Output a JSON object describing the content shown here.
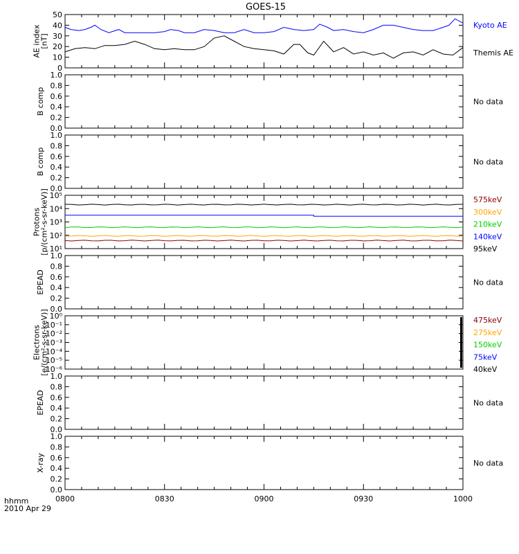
{
  "title": "GOES-15",
  "time_label": "hhmm",
  "date_label": "2010 Apr 29",
  "x_ticks": [
    "0800",
    "0830",
    "0900",
    "0930",
    "1000"
  ],
  "chart_data": [
    {
      "type": "line",
      "ylabel": [
        "AE index",
        "[nT]"
      ],
      "yticks": [
        "0",
        "10",
        "20",
        "30",
        "40",
        "50"
      ],
      "ylim": [
        0,
        50
      ],
      "xlim_hours": [
        8.0,
        10.0
      ],
      "series": [
        {
          "name": "Kyoto AE",
          "color": "#0000ff",
          "x": [
            8.0,
            8.03,
            8.07,
            8.1,
            8.13,
            8.15,
            8.18,
            8.22,
            8.27,
            8.3,
            8.35,
            8.4,
            8.45,
            8.5,
            8.53,
            8.57,
            8.6,
            8.65,
            8.7,
            8.75,
            8.8,
            8.85,
            8.9,
            8.95,
            9.0,
            9.05,
            9.1,
            9.15,
            9.2,
            9.25,
            9.28,
            9.32,
            9.35,
            9.4,
            9.45,
            9.5,
            9.55,
            9.6,
            9.65,
            9.7,
            9.75,
            9.8,
            9.85,
            9.9,
            9.93,
            9.96,
            10.0
          ],
          "values": [
            38,
            36,
            35,
            36,
            38,
            40,
            36,
            33,
            36,
            33,
            33,
            33,
            33,
            34,
            36,
            35,
            33,
            33,
            36,
            35,
            33,
            33,
            36,
            33,
            33,
            34,
            38,
            36,
            35,
            36,
            41,
            38,
            35,
            36,
            34,
            33,
            36,
            40,
            40,
            38,
            36,
            35,
            35,
            38,
            40,
            46,
            42
          ]
        },
        {
          "name": "Themis AE",
          "color": "#000000",
          "x": [
            8.0,
            8.05,
            8.1,
            8.15,
            8.2,
            8.25,
            8.3,
            8.35,
            8.4,
            8.45,
            8.5,
            8.55,
            8.6,
            8.65,
            8.7,
            8.75,
            8.8,
            8.85,
            8.9,
            8.95,
            9.0,
            9.05,
            9.1,
            9.15,
            9.18,
            9.22,
            9.25,
            9.3,
            9.35,
            9.4,
            9.45,
            9.5,
            9.55,
            9.6,
            9.65,
            9.7,
            9.75,
            9.8,
            9.85,
            9.9,
            9.95,
            10.0
          ],
          "values": [
            15,
            18,
            19,
            18,
            21,
            21,
            22,
            25,
            22,
            18,
            17,
            18,
            17,
            17,
            20,
            28,
            30,
            25,
            20,
            18,
            17,
            16,
            13,
            22,
            22,
            14,
            12,
            25,
            15,
            19,
            13,
            15,
            12,
            14,
            9,
            14,
            15,
            12,
            17,
            13,
            12,
            19
          ]
        }
      ]
    },
    {
      "type": "line",
      "ylabel": [
        "B comp"
      ],
      "yticks": [
        "0.0",
        "0.2",
        "0.4",
        "0.6",
        "0.8",
        "1.0"
      ],
      "ylim": [
        0,
        1
      ],
      "note": "No data",
      "series": []
    },
    {
      "type": "line",
      "ylabel": [
        "B comp"
      ],
      "yticks": [
        "0.0",
        "0.2",
        "0.4",
        "0.6",
        "0.8",
        "1.0"
      ],
      "ylim": [
        0,
        1
      ],
      "note": "No data",
      "series": []
    },
    {
      "type": "line",
      "log_scale": true,
      "ylabel": [
        "Protons",
        "[p/(cm²-s-sr-keV)]"
      ],
      "yticks": [
        "10¹",
        "10²",
        "10³",
        "10⁴",
        "10⁵"
      ],
      "ylim": [
        10,
        100000
      ],
      "series": [
        {
          "name": "575keV",
          "color": "#8b0000",
          "value": 40
        },
        {
          "name": "300keV",
          "color": "#ffa500",
          "value": 90
        },
        {
          "name": "210keV",
          "color": "#00cc00",
          "value": 400
        },
        {
          "name": "140keV",
          "color": "#0000ff",
          "values_piecewise": [
            [
              8.0,
              9.25,
              3200
            ],
            [
              9.25,
              10.0,
              2700
            ]
          ]
        },
        {
          "name": "95keV",
          "color": "#000000",
          "value": 20000
        }
      ]
    },
    {
      "type": "line",
      "ylabel": [
        "EPEAD"
      ],
      "yticks": [
        "0.0",
        "0.2",
        "0.4",
        "0.6",
        "0.8",
        "1.0"
      ],
      "ylim": [
        0,
        1
      ],
      "note": "No data",
      "series": []
    },
    {
      "type": "line",
      "log_scale": true,
      "ylabel": [
        "Electrons",
        "[e/(cm²-s-sr-keV)]"
      ],
      "yticks": [
        "10⁻⁶",
        "10⁻⁵",
        "10⁻⁴",
        "10⁻³",
        "10⁻²",
        "10⁻¹",
        "10⁰"
      ],
      "ylim": [
        1e-06,
        1
      ],
      "series": [
        {
          "name": "475keV",
          "color": "#8b0000"
        },
        {
          "name": "275keV",
          "color": "#ffa500"
        },
        {
          "name": "150keV",
          "color": "#00cc00"
        },
        {
          "name": "75keV",
          "color": "#0000ff"
        },
        {
          "name": "40keV",
          "color": "#000000"
        }
      ]
    },
    {
      "type": "line",
      "ylabel": [
        "EPEAD"
      ],
      "yticks": [
        "0.0",
        "0.2",
        "0.4",
        "0.6",
        "0.8",
        "1.0"
      ],
      "ylim": [
        0,
        1
      ],
      "note": "No data",
      "series": []
    },
    {
      "type": "line",
      "ylabel": [
        "X-ray"
      ],
      "yticks": [
        "0.0",
        "0.2",
        "0.4",
        "0.6",
        "0.8",
        "1.0"
      ],
      "ylim": [
        0,
        1
      ],
      "note": "No data",
      "series": []
    }
  ]
}
